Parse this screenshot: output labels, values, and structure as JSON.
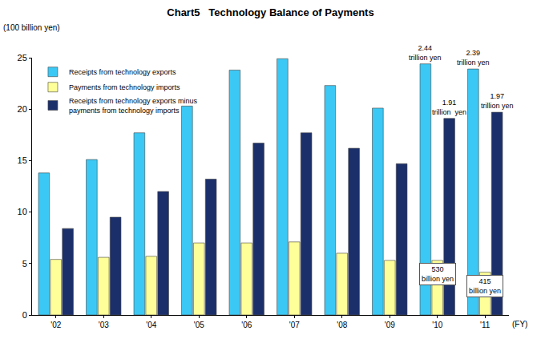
{
  "chart_data": {
    "type": "bar",
    "title": "Chart5   Technology Balance of Payments",
    "ylabel": "(100 billion yen)",
    "xlabel": "(FY)",
    "categories": [
      "'02",
      "'03",
      "'04",
      "'05",
      "'06",
      "'07",
      "'08",
      "'09",
      "'10",
      "'11"
    ],
    "series": [
      {
        "name": "Receipts from technology exports",
        "color": "#3CC8F4",
        "values": [
          13.8,
          15.1,
          17.7,
          20.3,
          23.8,
          24.9,
          22.3,
          20.1,
          24.4,
          23.9
        ]
      },
      {
        "name": "Payments from technology imports",
        "color": "#FFFF99",
        "values": [
          5.4,
          5.6,
          5.7,
          7.0,
          7.0,
          7.1,
          6.0,
          5.3,
          5.3,
          4.15
        ]
      },
      {
        "name": "Receipts from technology exports minus\npayments from technology imports",
        "color": "#1B2F6B",
        "values": [
          8.4,
          9.5,
          12.0,
          13.2,
          16.7,
          17.7,
          16.2,
          14.7,
          19.1,
          19.7
        ]
      }
    ],
    "annotations": [
      {
        "text": "2.44\ntrillion yen",
        "category": "'10",
        "series": "Receipts from technology exports"
      },
      {
        "text": "1.91\ntrillion  yen",
        "category": "'10",
        "series": "Receipts from technology exports minus\npayments from technology imports"
      },
      {
        "text": "530\nbillion yen",
        "category": "'10",
        "series": "Payments from technology imports"
      },
      {
        "text": "2.39\ntrillion yen",
        "category": "'11",
        "series": "Receipts from technology exports"
      },
      {
        "text": "1.97\ntrillion yen",
        "category": "'11",
        "series": "Receipts from technology exports minus\npayments from technology imports"
      },
      {
        "text": "415\nbillion yen",
        "category": "'11",
        "series": "Payments from technology imports"
      }
    ],
    "ylim": [
      0,
      25
    ],
    "yticks": [
      0,
      5,
      10,
      15,
      20,
      25
    ],
    "grid": false,
    "legend": "top-left",
    "stacked": false,
    "data_labels": false
  }
}
